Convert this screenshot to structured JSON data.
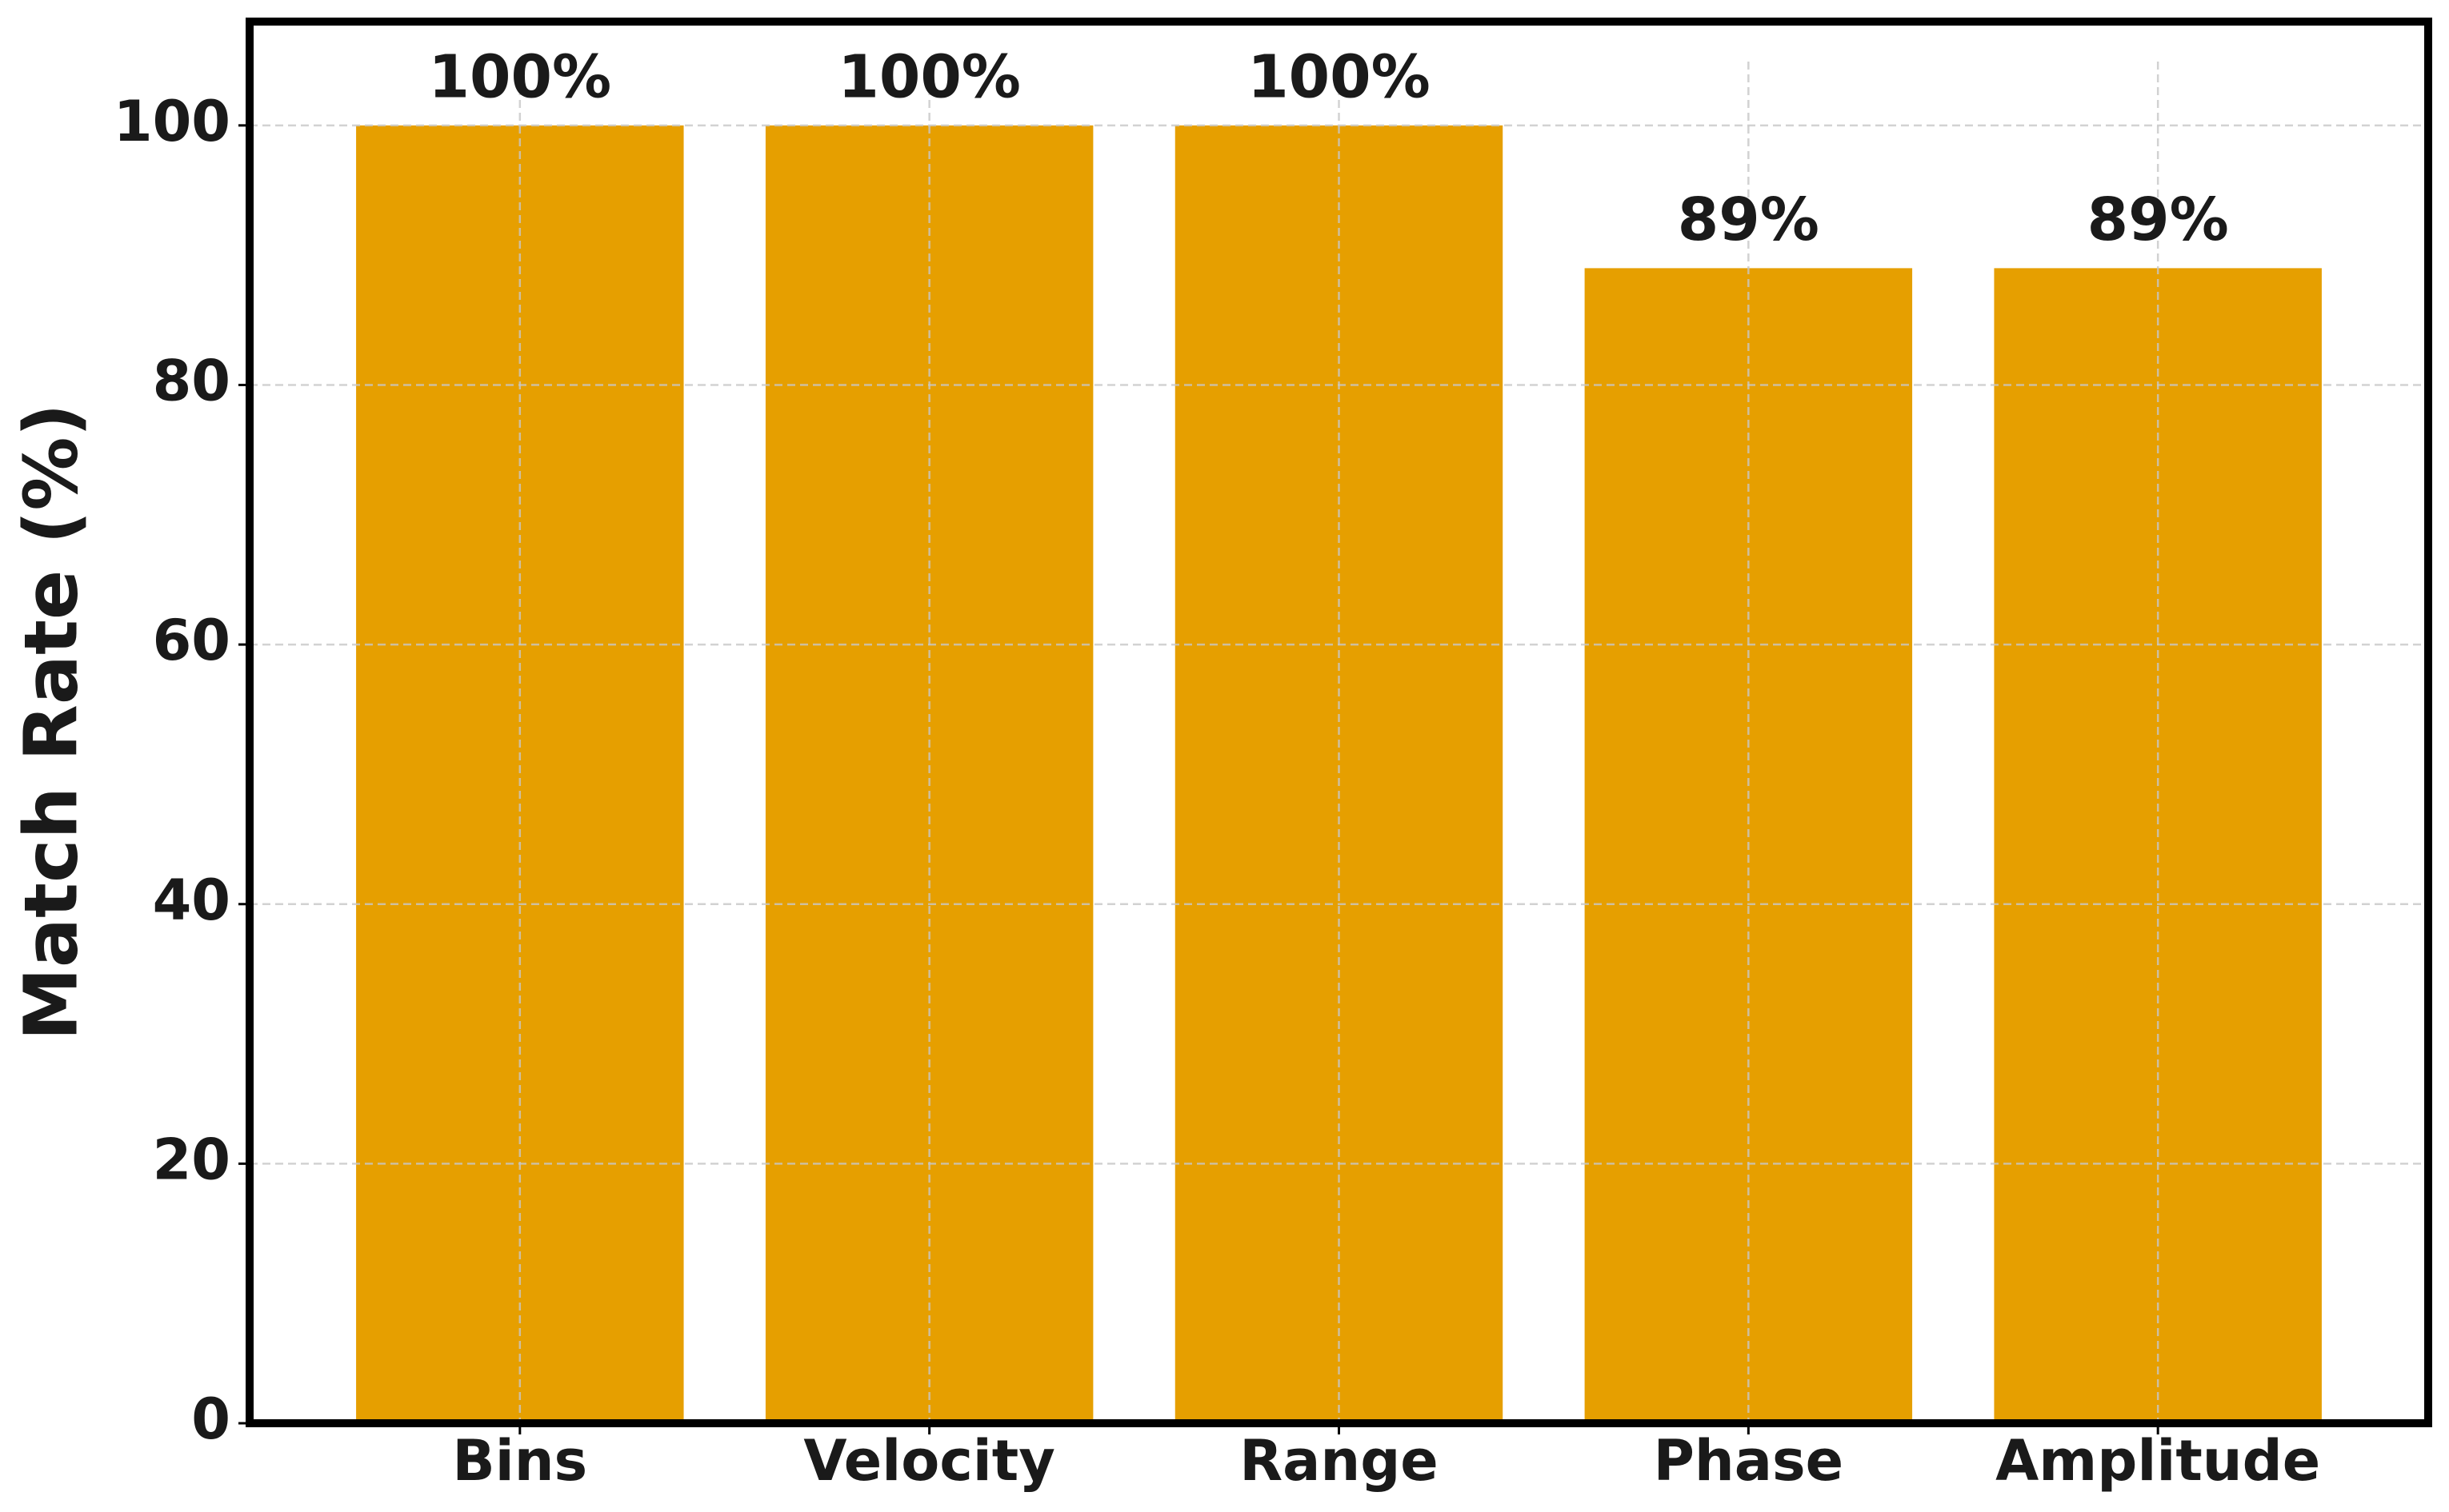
{
  "chart_data": {
    "type": "bar",
    "y_label": "Match Rate (%)",
    "categories": [
      "Bins",
      "Velocity",
      "Range",
      "Phase",
      "Amplitude"
    ],
    "values": [
      100,
      100,
      100,
      89,
      89
    ],
    "value_labels": [
      "100%",
      "100%",
      "100%",
      "89%",
      "89%"
    ],
    "color": "#e69f00",
    "ylim": [
      0,
      108
    ],
    "yticks": [
      0,
      20,
      40,
      60,
      80,
      100
    ],
    "grid": true
  }
}
